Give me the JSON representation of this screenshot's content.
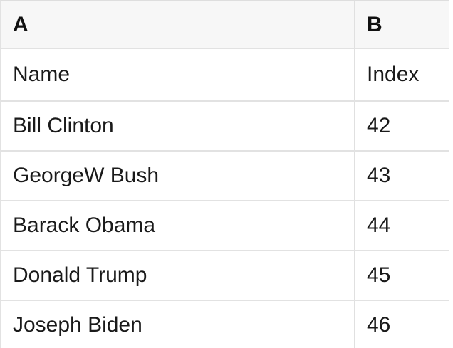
{
  "spreadsheet": {
    "column_letters": [
      "A",
      "B"
    ],
    "rows": [
      [
        "Name",
        "Index"
      ],
      [
        "Bill Clinton",
        "42"
      ],
      [
        "GeorgeW Bush",
        "43"
      ],
      [
        "Barack Obama",
        "44"
      ],
      [
        "Donald Trump",
        "45"
      ],
      [
        "Joseph Biden",
        "46"
      ]
    ],
    "colors": {
      "header_bg": "#f7f7f7",
      "grid_line": "#e2e2e2",
      "text": "#1a1a1a",
      "page_bg": "#ffffff"
    }
  }
}
